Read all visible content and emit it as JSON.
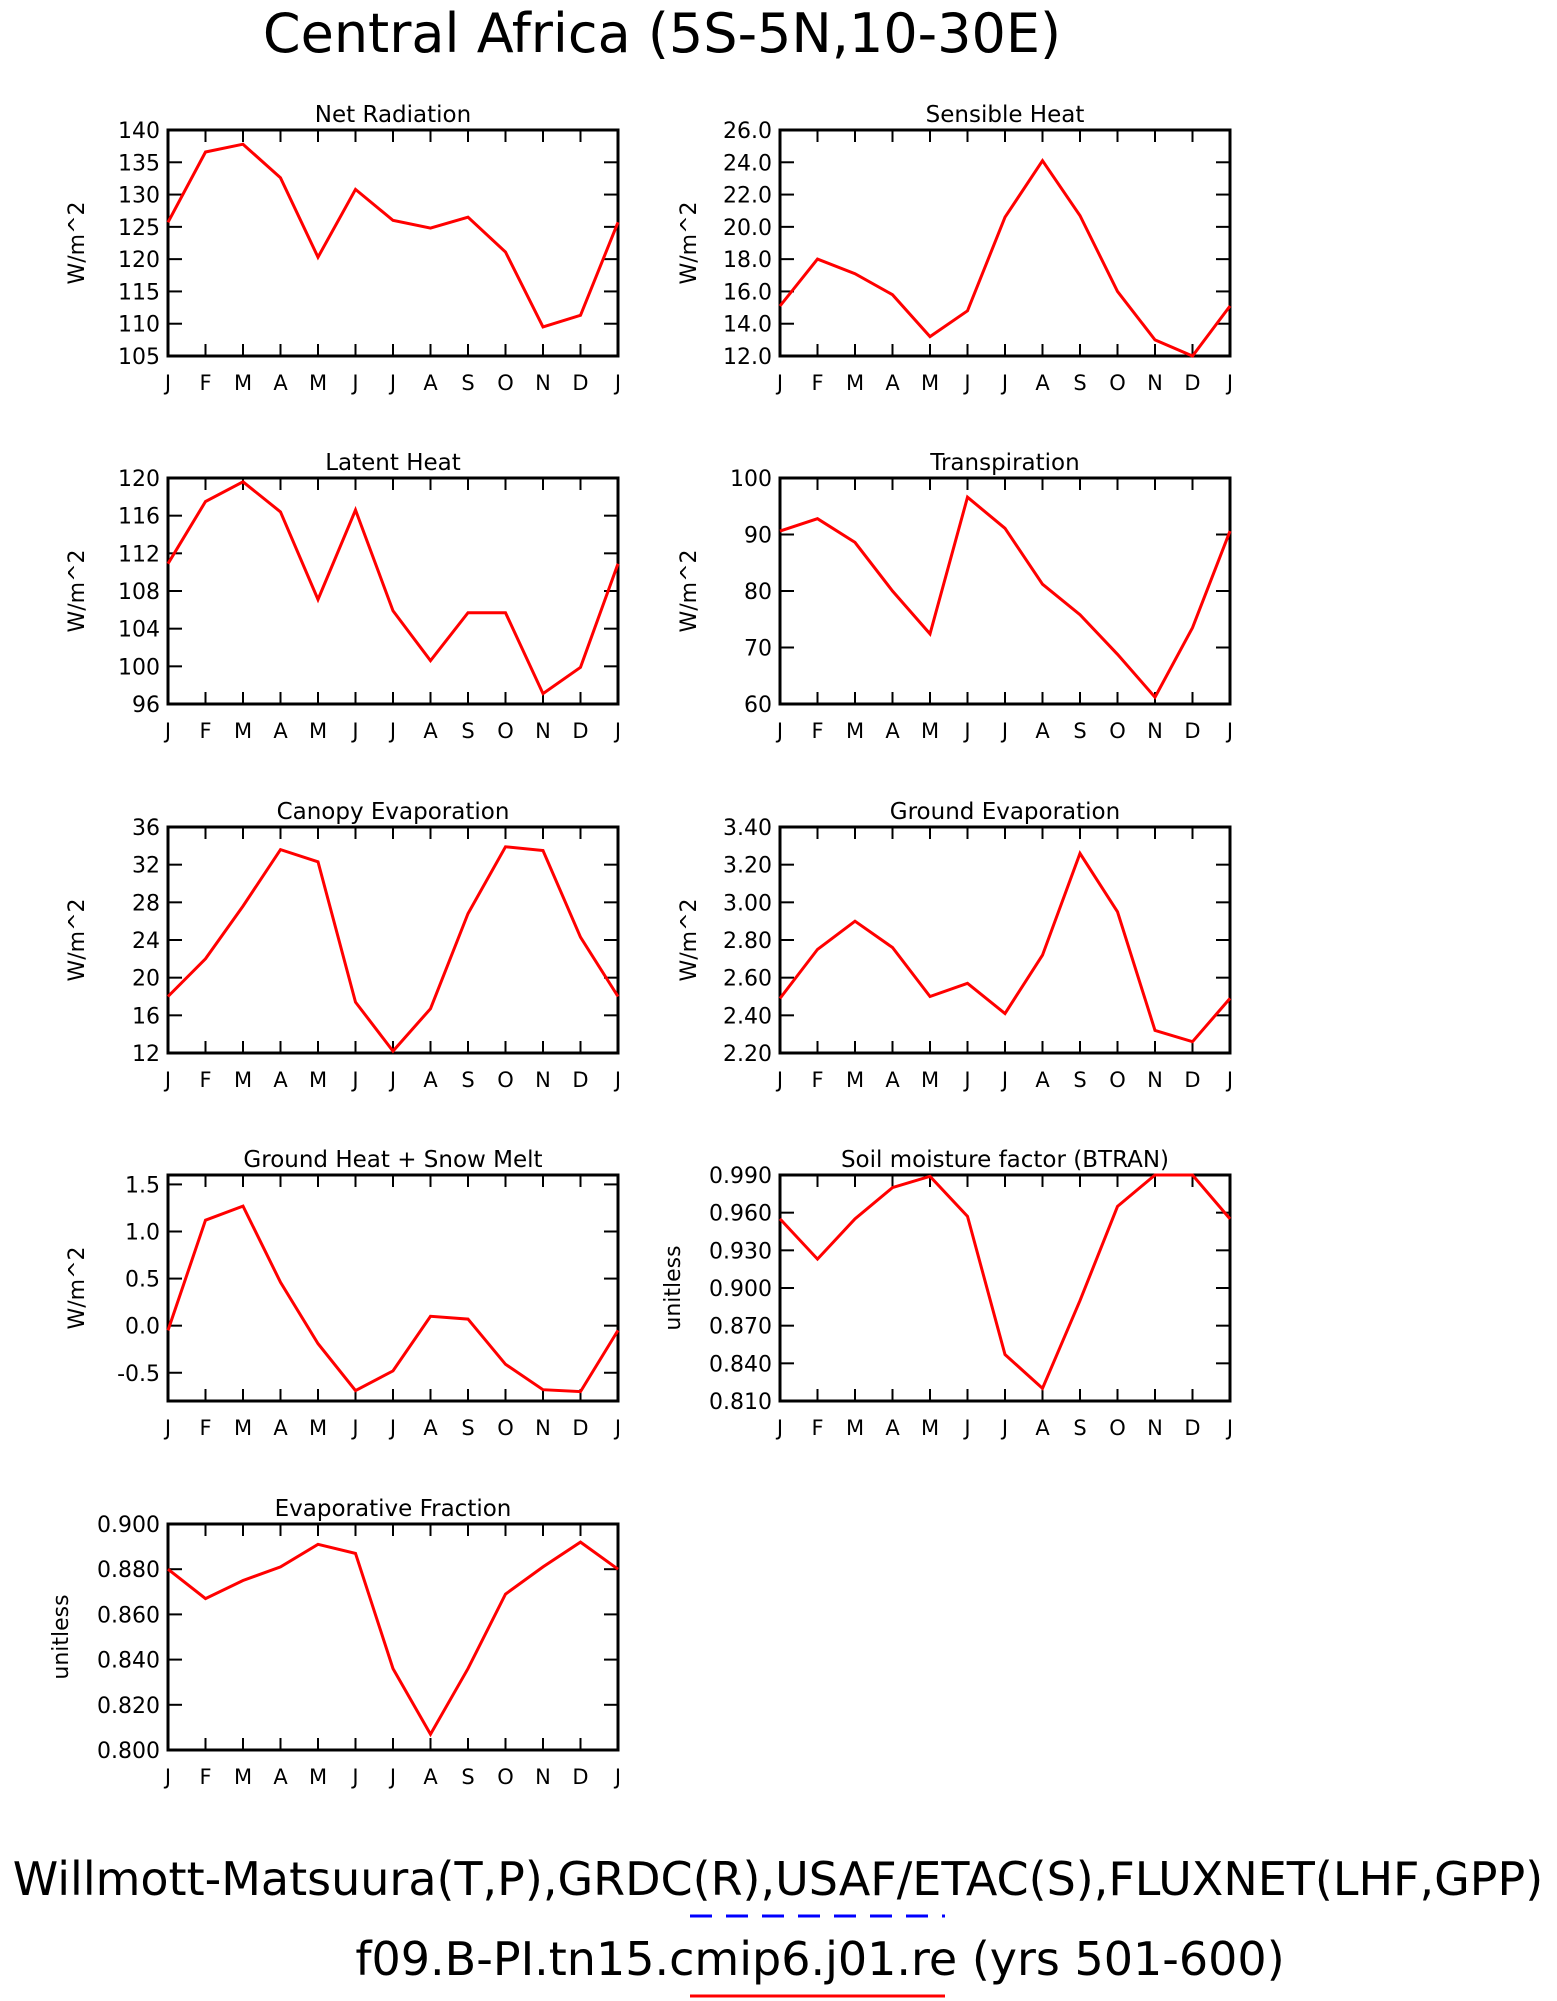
{
  "page": {
    "title": "Central Africa (5S-5N,10-30E)",
    "footer_obs": "Willmott-Matsuura(T,P),GRDC(R),USAF/ETAC(S),FLUXNET(LHF,GPP)",
    "footer_case": "f09.B-PI.tn15.cmip6.j01.re (yrs 501-600)",
    "colors": {
      "model_line": "#ff0000",
      "obs_legend_dash": "#0000ff",
      "axes": "#000000"
    }
  },
  "chart_data": [
    {
      "type": "line",
      "title": "Net Radiation",
      "ylabel": "W/m^2",
      "categories": [
        "J",
        "F",
        "M",
        "A",
        "M",
        "J",
        "J",
        "A",
        "S",
        "O",
        "N",
        "D",
        "J"
      ],
      "ylim": [
        105,
        140
      ],
      "yticks": [
        "140",
        "135",
        "130",
        "125",
        "120",
        "115",
        "110",
        "105"
      ],
      "series": [
        {
          "values": [
            125.7,
            136.6,
            137.8,
            132.6,
            120.3,
            130.8,
            126.0,
            124.8,
            126.5,
            121.1,
            109.5,
            111.3,
            125.7
          ]
        }
      ]
    },
    {
      "type": "line",
      "title": "Sensible Heat",
      "ylabel": "W/m^2",
      "categories": [
        "J",
        "F",
        "M",
        "A",
        "M",
        "J",
        "J",
        "A",
        "S",
        "O",
        "N",
        "D",
        "J"
      ],
      "ylim": [
        12,
        26
      ],
      "yticks": [
        "26.0",
        "24.0",
        "22.0",
        "20.0",
        "18.0",
        "16.0",
        "14.0",
        "12.0"
      ],
      "series": [
        {
          "values": [
            15.1,
            18.0,
            17.1,
            15.8,
            13.2,
            14.8,
            20.6,
            24.1,
            20.7,
            16.0,
            13.0,
            12.0,
            15.1
          ]
        }
      ]
    },
    {
      "type": "line",
      "title": "Latent Heat",
      "ylabel": "W/m^2",
      "categories": [
        "J",
        "F",
        "M",
        "A",
        "M",
        "J",
        "J",
        "A",
        "S",
        "O",
        "N",
        "D",
        "J"
      ],
      "ylim": [
        96,
        120
      ],
      "yticks": [
        "120",
        "116",
        "112",
        "108",
        "104",
        "100",
        "96"
      ],
      "series": [
        {
          "values": [
            110.9,
            117.5,
            119.6,
            116.4,
            107.1,
            116.6,
            105.9,
            100.6,
            105.7,
            105.7,
            97.1,
            99.9,
            110.9
          ]
        }
      ]
    },
    {
      "type": "line",
      "title": "Transpiration",
      "ylabel": "W/m^2",
      "categories": [
        "J",
        "F",
        "M",
        "A",
        "M",
        "J",
        "J",
        "A",
        "S",
        "O",
        "N",
        "D",
        "J"
      ],
      "ylim": [
        60,
        100
      ],
      "yticks": [
        "100",
        "90",
        "80",
        "70",
        "60"
      ],
      "series": [
        {
          "values": [
            90.6,
            92.8,
            88.6,
            80.0,
            72.4,
            96.6,
            91.1,
            81.2,
            75.8,
            68.8,
            61.2,
            73.5,
            90.6
          ]
        }
      ]
    },
    {
      "type": "line",
      "title": "Canopy Evaporation",
      "ylabel": "W/m^2",
      "categories": [
        "J",
        "F",
        "M",
        "A",
        "M",
        "J",
        "J",
        "A",
        "S",
        "O",
        "N",
        "D",
        "J"
      ],
      "ylim": [
        12,
        36
      ],
      "yticks": [
        "36",
        "32",
        "28",
        "24",
        "20",
        "16",
        "12"
      ],
      "series": [
        {
          "values": [
            18.0,
            22.0,
            27.6,
            33.6,
            32.3,
            17.4,
            12.2,
            16.7,
            26.8,
            33.9,
            33.5,
            24.3,
            18.0
          ]
        }
      ]
    },
    {
      "type": "line",
      "title": "Ground Evaporation",
      "ylabel": "W/m^2",
      "categories": [
        "J",
        "F",
        "M",
        "A",
        "M",
        "J",
        "J",
        "A",
        "S",
        "O",
        "N",
        "D",
        "J"
      ],
      "ylim": [
        2.2,
        3.4
      ],
      "yticks": [
        "3.40",
        "3.20",
        "3.00",
        "2.80",
        "2.60",
        "2.40",
        "2.20"
      ],
      "series": [
        {
          "values": [
            2.49,
            2.75,
            2.9,
            2.76,
            2.5,
            2.57,
            2.41,
            2.72,
            3.26,
            2.95,
            2.32,
            2.26,
            2.49
          ]
        }
      ]
    },
    {
      "type": "line",
      "title": "Ground Heat + Snow Melt",
      "ylabel": "W/m^2",
      "categories": [
        "J",
        "F",
        "M",
        "A",
        "M",
        "J",
        "J",
        "A",
        "S",
        "O",
        "N",
        "D",
        "J"
      ],
      "ylim": [
        -0.8,
        1.6
      ],
      "yticks": [
        "1.5",
        "1.0",
        "0.5",
        "0.0",
        "-0.5"
      ],
      "series": [
        {
          "values": [
            -0.05,
            1.12,
            1.27,
            0.46,
            -0.19,
            -0.69,
            -0.48,
            0.1,
            0.07,
            -0.41,
            -0.68,
            -0.7,
            -0.05
          ]
        }
      ]
    },
    {
      "type": "line",
      "title": "Soil moisture factor (BTRAN)",
      "ylabel": "unitless",
      "categories": [
        "J",
        "F",
        "M",
        "A",
        "M",
        "J",
        "J",
        "A",
        "S",
        "O",
        "N",
        "D",
        "J"
      ],
      "ylim": [
        0.81,
        0.99
      ],
      "yticks": [
        "0.990",
        "0.960",
        "0.930",
        "0.900",
        "0.870",
        "0.840",
        "0.810"
      ],
      "series": [
        {
          "values": [
            0.955,
            0.923,
            0.955,
            0.98,
            0.989,
            0.957,
            0.847,
            0.82,
            0.89,
            0.965,
            0.99,
            0.99,
            0.955
          ]
        }
      ]
    },
    {
      "type": "line",
      "title": "Evaporative Fraction",
      "ylabel": "unitless",
      "categories": [
        "J",
        "F",
        "M",
        "A",
        "M",
        "J",
        "J",
        "A",
        "S",
        "O",
        "N",
        "D",
        "J"
      ],
      "ylim": [
        0.8,
        0.9
      ],
      "yticks": [
        "0.900",
        "0.880",
        "0.860",
        "0.840",
        "0.820",
        "0.800"
      ],
      "series": [
        {
          "values": [
            0.88,
            0.867,
            0.875,
            0.881,
            0.891,
            0.887,
            0.836,
            0.807,
            0.836,
            0.869,
            0.881,
            0.892,
            0.88
          ]
        }
      ]
    }
  ]
}
